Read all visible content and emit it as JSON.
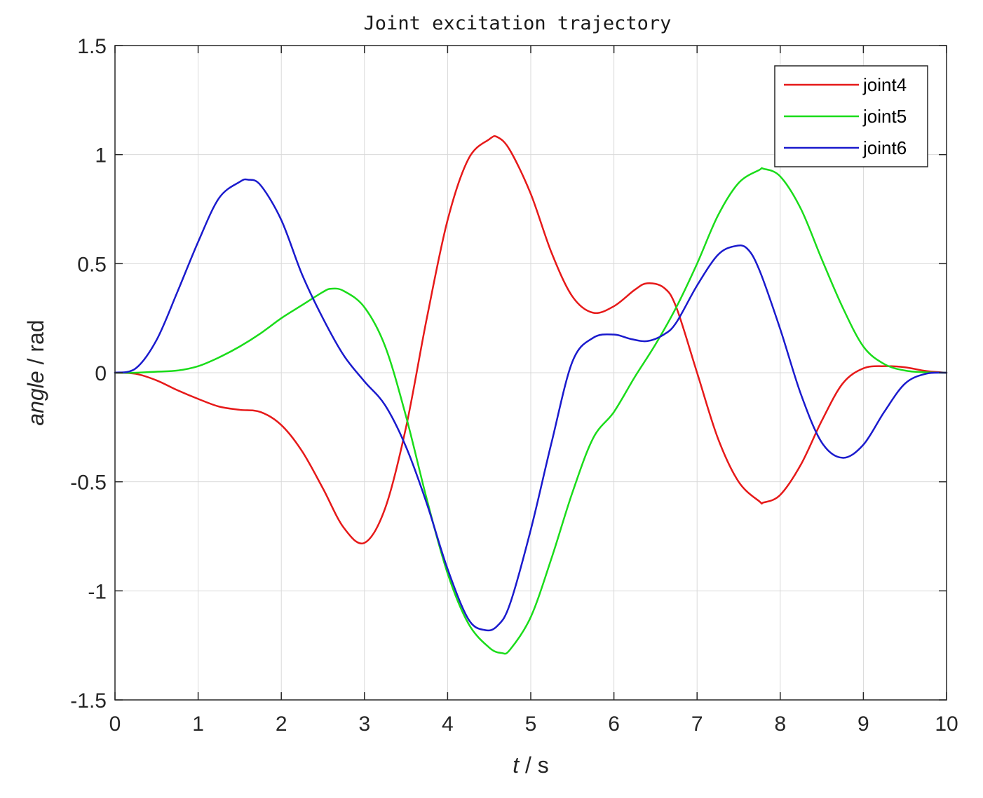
{
  "chart_data": {
    "type": "line",
    "title": "Joint excitation trajectory",
    "xlabel": "t / s",
    "xlabel_parts": {
      "var": "t",
      "unit": " / s"
    },
    "ylabel": "angle / rad",
    "ylabel_parts": {
      "var": "angle",
      "unit": " / rad"
    },
    "xlim": [
      0,
      10
    ],
    "ylim": [
      -1.5,
      1.5
    ],
    "xticks": [
      "0",
      "1",
      "2",
      "3",
      "4",
      "5",
      "6",
      "7",
      "8",
      "9",
      "10"
    ],
    "yticks": [
      "-1.5",
      "-1",
      "-0.5",
      "0",
      "0.5",
      "1",
      "1.5"
    ],
    "grid": true,
    "legend_position": "top-right",
    "series": [
      {
        "name": "joint4",
        "color": "#e61919",
        "x": [
          0,
          0.25,
          0.5,
          0.75,
          1.0,
          1.25,
          1.5,
          1.75,
          2.0,
          2.25,
          2.5,
          2.75,
          3.0,
          3.25,
          3.5,
          3.75,
          4.0,
          4.25,
          4.5,
          4.6,
          4.75,
          5.0,
          5.25,
          5.5,
          5.75,
          6.0,
          6.25,
          6.4,
          6.6,
          6.75,
          7.0,
          7.25,
          7.5,
          7.75,
          7.8,
          8.0,
          8.25,
          8.5,
          8.75,
          9.0,
          9.25,
          9.5,
          9.75,
          10.0
        ],
        "y": [
          0,
          -0.005,
          -0.035,
          -0.08,
          -0.12,
          -0.155,
          -0.17,
          -0.18,
          -0.24,
          -0.36,
          -0.53,
          -0.71,
          -0.78,
          -0.62,
          -0.25,
          0.25,
          0.7,
          0.98,
          1.07,
          1.08,
          1.02,
          0.82,
          0.55,
          0.35,
          0.275,
          0.305,
          0.38,
          0.41,
          0.39,
          0.3,
          0.0,
          -0.3,
          -0.5,
          -0.59,
          -0.595,
          -0.56,
          -0.42,
          -0.22,
          -0.05,
          0.02,
          0.03,
          0.025,
          0.008,
          0
        ]
      },
      {
        "name": "joint5",
        "color": "#1adc1a",
        "x": [
          0,
          0.25,
          0.5,
          0.75,
          1.0,
          1.25,
          1.5,
          1.75,
          2.0,
          2.25,
          2.5,
          2.6,
          2.75,
          3.0,
          3.25,
          3.5,
          3.75,
          4.0,
          4.25,
          4.5,
          4.65,
          4.75,
          5.0,
          5.25,
          5.5,
          5.75,
          6.0,
          6.25,
          6.5,
          6.75,
          7.0,
          7.25,
          7.5,
          7.75,
          7.8,
          8.0,
          8.25,
          8.5,
          8.75,
          9.0,
          9.25,
          9.5,
          9.75,
          10.0
        ],
        "y": [
          0,
          0.0,
          0.005,
          0.01,
          0.03,
          0.07,
          0.12,
          0.18,
          0.25,
          0.31,
          0.37,
          0.385,
          0.375,
          0.3,
          0.12,
          -0.2,
          -0.58,
          -0.92,
          -1.15,
          -1.26,
          -1.285,
          -1.27,
          -1.12,
          -0.85,
          -0.55,
          -0.3,
          -0.18,
          -0.02,
          0.13,
          0.3,
          0.5,
          0.72,
          0.87,
          0.93,
          0.935,
          0.9,
          0.75,
          0.52,
          0.3,
          0.12,
          0.04,
          0.01,
          0.002,
          0
        ]
      },
      {
        "name": "joint6",
        "color": "#1a1acd",
        "x": [
          0,
          0.25,
          0.5,
          0.75,
          1.0,
          1.25,
          1.5,
          1.6,
          1.75,
          2.0,
          2.25,
          2.5,
          2.75,
          3.0,
          3.25,
          3.5,
          3.75,
          4.0,
          4.25,
          4.45,
          4.6,
          4.75,
          5.0,
          5.25,
          5.5,
          5.75,
          6.0,
          6.2,
          6.4,
          6.6,
          6.75,
          7.0,
          7.25,
          7.45,
          7.6,
          7.75,
          8.0,
          8.25,
          8.5,
          8.75,
          9.0,
          9.25,
          9.5,
          9.75,
          10.0
        ],
        "y": [
          0,
          0.02,
          0.15,
          0.37,
          0.6,
          0.8,
          0.875,
          0.885,
          0.86,
          0.7,
          0.45,
          0.25,
          0.08,
          -0.04,
          -0.15,
          -0.34,
          -0.6,
          -0.9,
          -1.13,
          -1.18,
          -1.16,
          -1.06,
          -0.72,
          -0.32,
          0.05,
          0.16,
          0.175,
          0.155,
          0.145,
          0.175,
          0.23,
          0.4,
          0.54,
          0.58,
          0.57,
          0.47,
          0.2,
          -0.1,
          -0.32,
          -0.39,
          -0.33,
          -0.18,
          -0.05,
          -0.005,
          0
        ]
      }
    ]
  }
}
